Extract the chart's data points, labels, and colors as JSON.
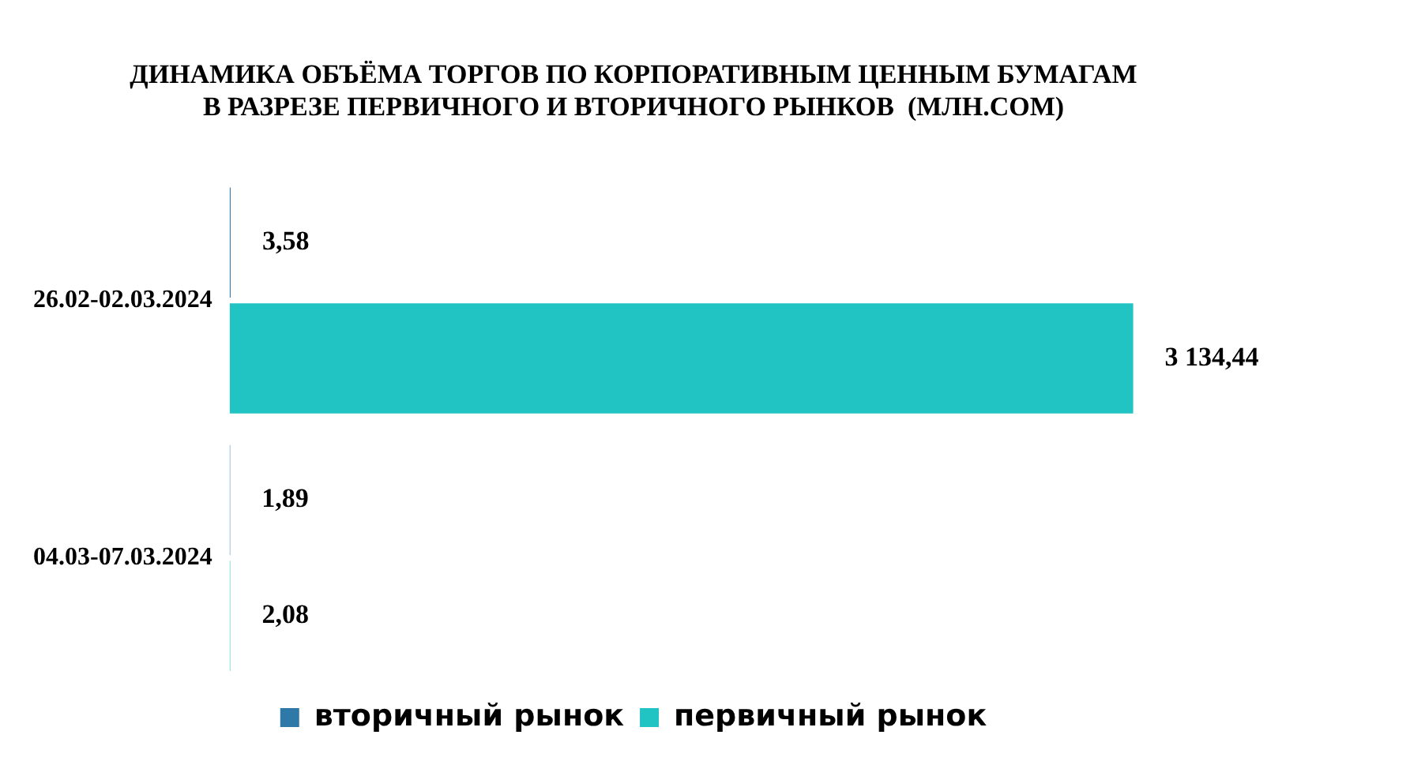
{
  "chart_data": {
    "type": "bar",
    "orientation": "horizontal",
    "title": "ДИНАМИКА ОБЪЁМА ТОРГОВ ПО КОРПОРАТИВНЫМ ЦЕННЫМ БУМАГАМ\nВ РАЗРЕЗЕ ПЕРВИЧНОГО И ВТОРИЧНОГО РЫНКОВ  (МЛН.СОМ)",
    "categories": [
      "26.02-02.03.2024",
      "04.03-07.03.2024"
    ],
    "series": [
      {
        "name": "вторичный рынок",
        "color": "#2f79a8",
        "values": [
          3.58,
          1.89
        ],
        "value_labels": [
          "3,58",
          "1,89"
        ]
      },
      {
        "name": "первичный рынок",
        "color": "#22c3c3",
        "values": [
          3134.44,
          2.08
        ],
        "value_labels": [
          "3 134,44",
          "2,08"
        ]
      }
    ],
    "legend": "bottom",
    "tick_labels": "y"
  }
}
